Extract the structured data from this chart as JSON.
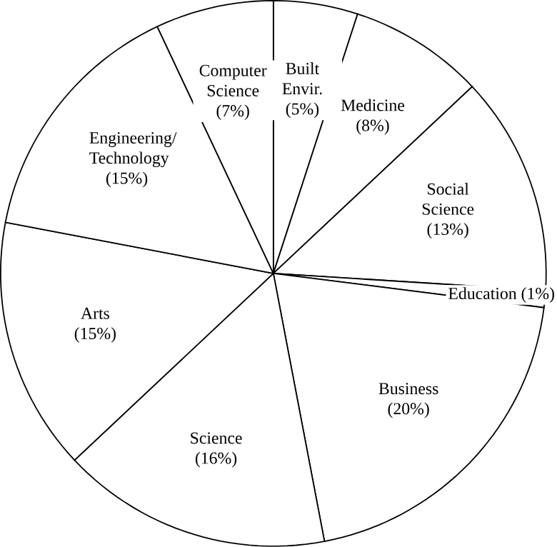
{
  "chart_data": {
    "type": "pie",
    "categories": [
      "Built Envir.",
      "Medicine",
      "Social Science",
      "Education",
      "Business",
      "Science",
      "Arts",
      "Engineering/ Technology",
      "Computer Science"
    ],
    "values": [
      5,
      8,
      13,
      1,
      20,
      16,
      15,
      15,
      7
    ],
    "value_labels": [
      "(5%)",
      "(8%)",
      "(13%)",
      "(1%)",
      "(20%)",
      "(16%)",
      "(15%)",
      "(15%)",
      "(7%)"
    ],
    "colors": [
      "#ffffff",
      "#ffffff",
      "#ffffff",
      "#ffffff",
      "#ffffff",
      "#ffffff",
      "#ffffff",
      "#ffffff",
      "#ffffff"
    ]
  }
}
